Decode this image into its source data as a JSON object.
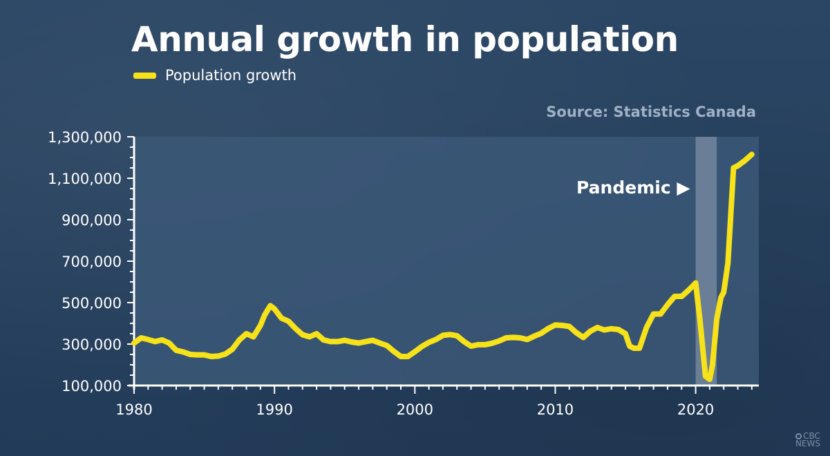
{
  "title": "Annual growth in population",
  "legend": {
    "label": "Population growth"
  },
  "source": "Source: Statistics Canada",
  "annotation": "Pandemic ▶",
  "logo": {
    "line1": "CBC",
    "line2": "NEWS"
  },
  "colors": {
    "line": "#f7e21a",
    "plot_bg": "#3c5878",
    "pandemic_band": "#7b8da3",
    "axis": "#ffffff"
  },
  "chart_data": {
    "type": "line",
    "title": "Annual growth in population",
    "xlabel": "",
    "ylabel": "",
    "xlim": [
      1980,
      2024.5
    ],
    "ylim": [
      100000,
      1300000
    ],
    "x_ticks": [
      1980,
      1990,
      2000,
      2010,
      2020
    ],
    "x_tick_labels": [
      "1980",
      "1990",
      "2000",
      "2010",
      "2020"
    ],
    "y_ticks": [
      100000,
      300000,
      500000,
      700000,
      900000,
      1100000,
      1300000
    ],
    "y_tick_labels": [
      "100,000",
      "300,000",
      "500,000",
      "700,000",
      "900,000",
      "1,100,000",
      "1,300,000"
    ],
    "shaded_region": {
      "label": "Pandemic",
      "x": [
        2020.0,
        2021.5
      ]
    },
    "series": [
      {
        "name": "Population growth",
        "x": [
          1980.0,
          1980.5,
          1981.0,
          1981.5,
          1982.0,
          1982.5,
          1983.0,
          1983.5,
          1984.0,
          1984.5,
          1985.0,
          1985.5,
          1986.0,
          1986.5,
          1987.0,
          1987.5,
          1988.0,
          1988.5,
          1989.0,
          1989.3,
          1989.7,
          1990.0,
          1990.5,
          1991.0,
          1991.5,
          1992.0,
          1992.5,
          1993.0,
          1993.5,
          1994.0,
          1994.5,
          1995.0,
          1995.5,
          1996.0,
          1996.5,
          1997.0,
          1997.5,
          1998.0,
          1998.5,
          1999.0,
          1999.5,
          2000.0,
          2000.5,
          2001.0,
          2001.5,
          2002.0,
          2002.5,
          2003.0,
          2003.5,
          2004.0,
          2004.5,
          2005.0,
          2005.5,
          2006.0,
          2006.5,
          2007.0,
          2007.5,
          2008.0,
          2008.5,
          2009.0,
          2009.5,
          2010.0,
          2010.5,
          2011.0,
          2011.5,
          2012.0,
          2012.5,
          2013.0,
          2013.5,
          2014.0,
          2014.5,
          2015.0,
          2015.3,
          2015.6,
          2016.0,
          2016.5,
          2017.0,
          2017.5,
          2018.0,
          2018.5,
          2019.0,
          2019.5,
          2020.0,
          2020.3,
          2020.7,
          2021.0,
          2021.2,
          2021.5,
          2021.8,
          2022.0,
          2022.3,
          2022.7,
          2023.0,
          2023.5,
          2024.0
        ],
        "values": [
          305000,
          330000,
          322000,
          312000,
          320000,
          305000,
          270000,
          262000,
          250000,
          248000,
          248000,
          240000,
          242000,
          252000,
          275000,
          320000,
          350000,
          335000,
          390000,
          440000,
          485000,
          470000,
          425000,
          410000,
          375000,
          345000,
          335000,
          350000,
          320000,
          312000,
          312000,
          318000,
          310000,
          305000,
          312000,
          318000,
          305000,
          293000,
          265000,
          240000,
          240000,
          263000,
          288000,
          308000,
          322000,
          342000,
          346000,
          340000,
          312000,
          290000,
          297000,
          297000,
          304000,
          315000,
          330000,
          332000,
          330000,
          322000,
          338000,
          352000,
          375000,
          392000,
          390000,
          385000,
          355000,
          332000,
          362000,
          380000,
          368000,
          374000,
          370000,
          350000,
          290000,
          280000,
          280000,
          380000,
          445000,
          445000,
          490000,
          530000,
          530000,
          560000,
          595000,
          420000,
          145000,
          130000,
          200000,
          420000,
          525000,
          550000,
          690000,
          1150000,
          1160000,
          1185000,
          1215000
        ]
      }
    ]
  }
}
